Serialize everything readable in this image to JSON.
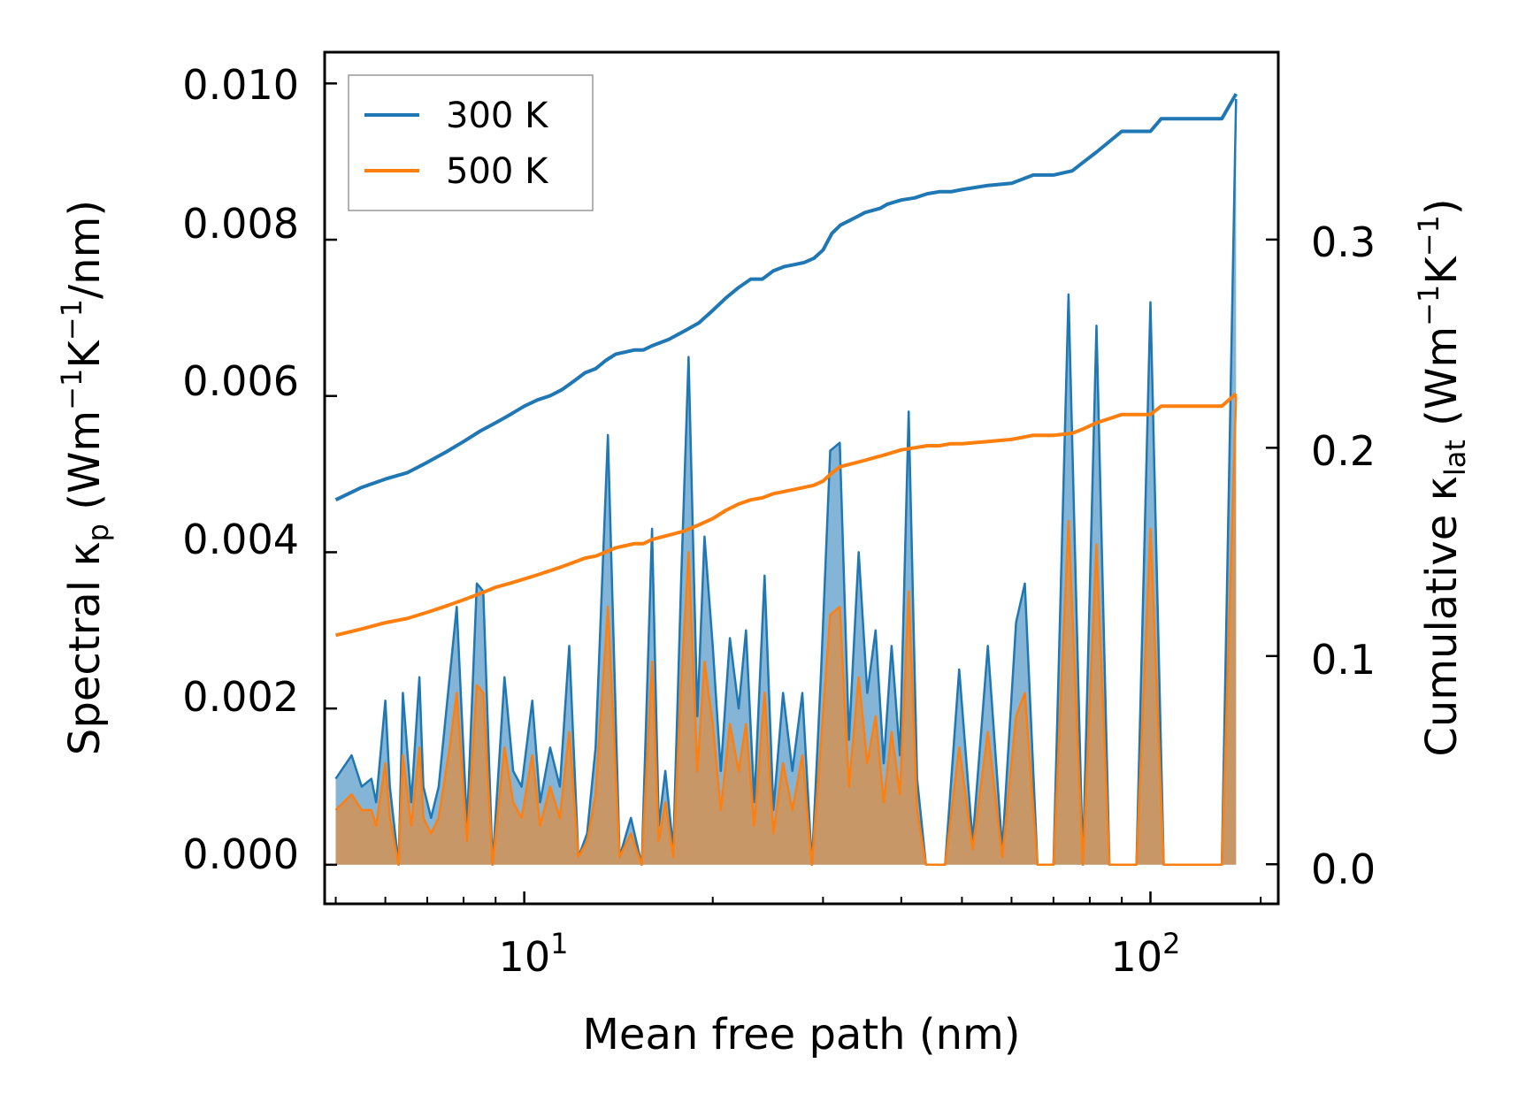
{
  "chart_data": {
    "type": "line",
    "xlabel": "Mean free path (nm)",
    "xscale": "log",
    "xlim": [
      4.8,
      160
    ],
    "x_tick_labels": [
      "10",
      "10"
    ],
    "x_tick_exponents": [
      "1",
      "2"
    ],
    "ylabel_left": {
      "main": "Spectral κ",
      "sub": "p",
      "unit_pre": " (Wm",
      "sup1": "−1",
      "unit_mid": "K",
      "sup2": "−1",
      "unit_post": "/nm)"
    },
    "ylabel_right": {
      "main": "Cumulative κ",
      "sub": "lat",
      "unit_pre": " (Wm",
      "sup1": "−1",
      "unit_mid": "K",
      "sup2": "−1",
      "unit_post": ")"
    },
    "ylim_left": [
      -0.0005,
      0.0104
    ],
    "ylim_right": [
      -0.019,
      0.39
    ],
    "y_left_ticks": [
      "0.000",
      "0.002",
      "0.004",
      "0.006",
      "0.008",
      "0.010"
    ],
    "y_right_ticks": [
      "0.0",
      "0.1",
      "0.2",
      "0.3"
    ],
    "legend": {
      "position": "top-left",
      "entries": [
        "300 K",
        "500 K"
      ]
    },
    "colors": {
      "s300": "#1f77b4",
      "s500": "#ff7f0e"
    },
    "series_spectral": [
      {
        "name": "300 K",
        "axis": "left",
        "x": [
          5.0,
          5.3,
          5.5,
          5.7,
          5.8,
          6.0,
          6.1,
          6.3,
          6.4,
          6.6,
          6.8,
          6.9,
          7.1,
          7.3,
          7.6,
          7.8,
          8.1,
          8.4,
          8.6,
          8.9,
          9.3,
          9.6,
          9.9,
          10.3,
          10.6,
          11.0,
          11.4,
          11.8,
          12.2,
          12.6,
          13.0,
          13.6,
          14.2,
          14.8,
          15.4,
          16.0,
          16.4,
          16.8,
          17.3,
          17.8,
          18.3,
          18.9,
          19.4,
          20.0,
          20.6,
          21.3,
          22.0,
          22.6,
          23.3,
          24.2,
          25.0,
          25.9,
          26.8,
          27.8,
          28.8,
          29.8,
          30.8,
          31.9,
          33.0,
          34.2,
          35.3,
          36.4,
          37.5,
          38.6,
          39.8,
          41.1,
          42.4,
          43.8,
          45.2,
          47.0,
          49.5,
          52.0,
          55.0,
          58.0,
          61.0,
          63.0,
          66.0,
          70.0,
          74.0,
          78.0,
          82.0,
          86.0,
          90.0,
          95.0,
          100.0,
          105.0,
          110.0,
          120.0,
          130.0,
          137.0
        ],
        "y": [
          0.0011,
          0.0014,
          0.001,
          0.0011,
          0.0008,
          0.0021,
          0.001,
          0.0,
          0.0022,
          0.0008,
          0.0024,
          0.001,
          0.0006,
          0.001,
          0.0024,
          0.0033,
          0.0005,
          0.0036,
          0.0035,
          0.0,
          0.0024,
          0.0012,
          0.001,
          0.0021,
          0.0008,
          0.0015,
          0.001,
          0.0028,
          0.0001,
          0.0004,
          0.0015,
          0.0055,
          0.0001,
          0.0006,
          0.0,
          0.0043,
          0.0005,
          0.0012,
          0.0002,
          0.0036,
          0.0065,
          0.0019,
          0.0042,
          0.0028,
          0.0012,
          0.0029,
          0.002,
          0.003,
          0.0008,
          0.0037,
          0.0007,
          0.0022,
          0.0012,
          0.0022,
          0.0,
          0.0025,
          0.0053,
          0.0054,
          0.0016,
          0.004,
          0.0022,
          0.003,
          0.0013,
          0.0028,
          0.0014,
          0.0058,
          0.0011,
          0.0,
          0.0,
          0.0,
          0.0025,
          0.0003,
          0.0028,
          0.0002,
          0.0031,
          0.0036,
          0.0,
          0.0,
          0.0073,
          0.0,
          0.0069,
          0.0,
          0.0,
          0.0,
          0.0072,
          0.0,
          0.0,
          0.0,
          0.0,
          0.0098
        ]
      },
      {
        "name": "500 K",
        "axis": "left",
        "x": [
          5.0,
          5.3,
          5.5,
          5.7,
          5.8,
          6.0,
          6.1,
          6.3,
          6.4,
          6.6,
          6.8,
          6.9,
          7.1,
          7.3,
          7.6,
          7.8,
          8.1,
          8.4,
          8.6,
          8.9,
          9.3,
          9.6,
          9.9,
          10.3,
          10.6,
          11.0,
          11.4,
          11.8,
          12.2,
          12.6,
          13.0,
          13.6,
          14.2,
          14.8,
          15.4,
          16.0,
          16.4,
          16.8,
          17.3,
          17.8,
          18.3,
          18.9,
          19.4,
          20.0,
          20.6,
          21.3,
          22.0,
          22.6,
          23.3,
          24.2,
          25.0,
          25.9,
          26.8,
          27.8,
          28.8,
          29.8,
          30.8,
          31.9,
          33.0,
          34.2,
          35.3,
          36.4,
          37.5,
          38.6,
          39.8,
          41.1,
          42.4,
          43.8,
          45.2,
          47.0,
          49.5,
          52.0,
          55.0,
          58.0,
          61.0,
          63.0,
          66.0,
          70.0,
          74.0,
          78.0,
          82.0,
          86.0,
          90.0,
          95.0,
          100.0,
          105.0,
          110.0,
          120.0,
          130.0,
          137.0
        ],
        "y": [
          0.0007,
          0.0009,
          0.0007,
          0.0007,
          0.0005,
          0.0013,
          0.0006,
          0.0,
          0.0014,
          0.0005,
          0.0015,
          0.0006,
          0.0004,
          0.0006,
          0.0015,
          0.0022,
          0.0003,
          0.0023,
          0.0022,
          0.0,
          0.0015,
          0.0008,
          0.0006,
          0.0014,
          0.0005,
          0.001,
          0.0006,
          0.0017,
          0.0001,
          0.0003,
          0.0009,
          0.0033,
          0.0001,
          0.0004,
          0.0,
          0.0026,
          0.0003,
          0.0008,
          0.0001,
          0.0023,
          0.004,
          0.0012,
          0.0026,
          0.0018,
          0.0007,
          0.0018,
          0.0012,
          0.0018,
          0.0005,
          0.0022,
          0.0004,
          0.0013,
          0.0007,
          0.0014,
          0.0,
          0.0016,
          0.0032,
          0.0033,
          0.001,
          0.0024,
          0.0013,
          0.0019,
          0.0008,
          0.0017,
          0.0009,
          0.0035,
          0.0007,
          0.0,
          0.0,
          0.0,
          0.0015,
          0.0002,
          0.0017,
          0.0001,
          0.0019,
          0.0022,
          0.0,
          0.0,
          0.0044,
          0.0,
          0.0041,
          0.0,
          0.0,
          0.0,
          0.0043,
          0.0,
          0.0,
          0.0,
          0.0,
          0.006
        ]
      }
    ],
    "series_cumulative": [
      {
        "name": "300 K",
        "axis": "right",
        "x": [
          5.0,
          5.5,
          6.0,
          6.5,
          7.0,
          7.5,
          8.0,
          8.5,
          9.0,
          9.5,
          10.0,
          10.5,
          11.0,
          11.5,
          12.0,
          12.5,
          13.0,
          13.5,
          14.0,
          14.5,
          15.0,
          15.5,
          16.0,
          17.0,
          18.0,
          19.0,
          20.0,
          21.0,
          22.0,
          23.0,
          24.0,
          25.0,
          26.0,
          27.0,
          28.0,
          29.0,
          30.0,
          31.0,
          32.0,
          33.0,
          34.0,
          35.0,
          36.0,
          37.0,
          38.0,
          39.0,
          40.0,
          42.0,
          44.0,
          46.0,
          48.0,
          50.0,
          55.0,
          60.0,
          65.0,
          70.0,
          75.0,
          78.0,
          82.0,
          90.0,
          100.0,
          104.0,
          110.0,
          120.0,
          130.0,
          137.0
        ],
        "y": [
          0.175,
          0.181,
          0.185,
          0.188,
          0.193,
          0.198,
          0.203,
          0.208,
          0.212,
          0.216,
          0.22,
          0.223,
          0.225,
          0.228,
          0.232,
          0.236,
          0.238,
          0.242,
          0.245,
          0.246,
          0.247,
          0.247,
          0.249,
          0.252,
          0.256,
          0.26,
          0.266,
          0.272,
          0.277,
          0.281,
          0.281,
          0.285,
          0.287,
          0.288,
          0.289,
          0.291,
          0.295,
          0.303,
          0.307,
          0.309,
          0.311,
          0.313,
          0.314,
          0.315,
          0.317,
          0.318,
          0.319,
          0.32,
          0.322,
          0.323,
          0.323,
          0.324,
          0.326,
          0.327,
          0.331,
          0.331,
          0.333,
          0.337,
          0.342,
          0.352,
          0.352,
          0.358,
          0.358,
          0.358,
          0.358,
          0.37
        ]
      },
      {
        "name": "500 K",
        "axis": "right",
        "x": [
          5.0,
          5.5,
          6.0,
          6.5,
          7.0,
          7.5,
          8.0,
          8.5,
          9.0,
          9.5,
          10.0,
          10.5,
          11.0,
          11.5,
          12.0,
          12.5,
          13.0,
          13.5,
          14.0,
          14.5,
          15.0,
          15.5,
          16.0,
          17.0,
          18.0,
          19.0,
          20.0,
          21.0,
          22.0,
          23.0,
          24.0,
          25.0,
          26.0,
          27.0,
          28.0,
          29.0,
          30.0,
          31.0,
          32.0,
          33.0,
          34.0,
          35.0,
          36.0,
          37.0,
          38.0,
          39.0,
          40.0,
          42.0,
          44.0,
          46.0,
          48.0,
          50.0,
          55.0,
          60.0,
          65.0,
          70.0,
          75.0,
          78.0,
          82.0,
          90.0,
          100.0,
          104.0,
          110.0,
          120.0,
          130.0,
          137.0
        ],
        "y": [
          0.11,
          0.113,
          0.116,
          0.118,
          0.121,
          0.124,
          0.127,
          0.13,
          0.133,
          0.135,
          0.137,
          0.139,
          0.141,
          0.143,
          0.145,
          0.147,
          0.148,
          0.15,
          0.152,
          0.153,
          0.154,
          0.154,
          0.156,
          0.158,
          0.16,
          0.163,
          0.166,
          0.17,
          0.173,
          0.175,
          0.176,
          0.178,
          0.179,
          0.18,
          0.181,
          0.182,
          0.184,
          0.188,
          0.191,
          0.192,
          0.193,
          0.194,
          0.195,
          0.196,
          0.197,
          0.198,
          0.199,
          0.2,
          0.201,
          0.201,
          0.202,
          0.202,
          0.203,
          0.204,
          0.206,
          0.206,
          0.207,
          0.209,
          0.212,
          0.216,
          0.216,
          0.22,
          0.22,
          0.22,
          0.22,
          0.226
        ]
      }
    ]
  }
}
